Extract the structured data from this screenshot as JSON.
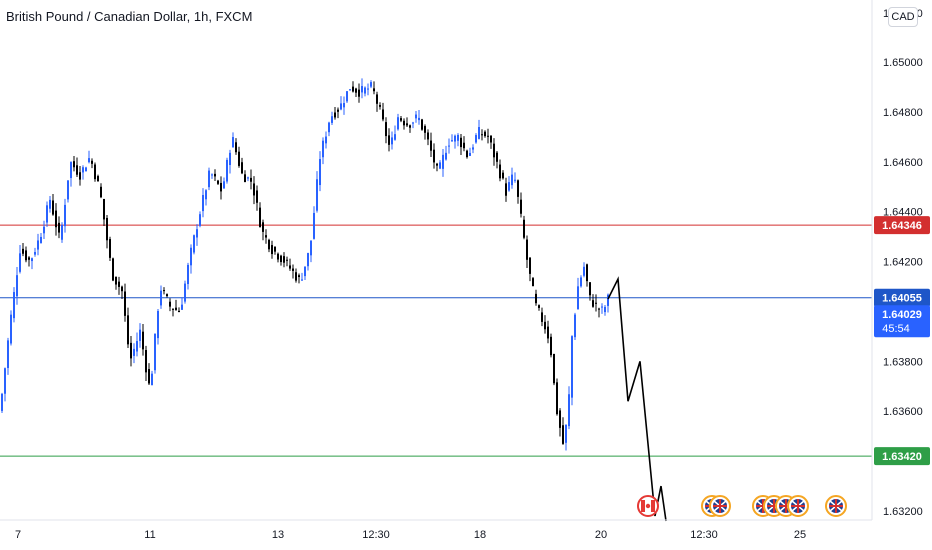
{
  "header": {
    "title": "British Pound / Canadian Dollar, 1h, FXCM",
    "currency_button": "CAD"
  },
  "colors": {
    "up": "#2962ff",
    "down": "#000000",
    "resistance": "#d32f2f",
    "pivot": "#1e56c8",
    "support": "#2e9e47",
    "price_tag": "#2962ff",
    "projection": "#000000"
  },
  "chart_data": {
    "type": "line",
    "instrument": "British Pound / Canadian Dollar",
    "timeframe": "1h",
    "source": "FXCM",
    "y_axis": {
      "ticks": [
        1.65,
        1.648,
        1.646,
        1.644,
        1.642,
        1.638,
        1.636,
        1.632
      ],
      "tick_labels": [
        "1.65000",
        "1.64800",
        "1.64600",
        "1.64400",
        "1.64200",
        "1.63800",
        "1.63600",
        "1.63200"
      ],
      "partial_top_label": "1.65200",
      "range": [
        1.6316,
        1.6525
      ]
    },
    "x_axis": {
      "tick_labels": [
        "7",
        "11",
        "13",
        "12:30",
        "18",
        "20",
        "12:30",
        "25"
      ]
    },
    "series": [
      {
        "points": [
          [
            0,
            1.636
          ],
          [
            10,
            1.6395
          ],
          [
            20,
            1.6425
          ],
          [
            30,
            1.642
          ],
          [
            40,
            1.643
          ],
          [
            50,
            1.6445
          ],
          [
            60,
            1.6428
          ],
          [
            70,
            1.646
          ],
          [
            80,
            1.6455
          ],
          [
            90,
            1.6462
          ],
          [
            100,
            1.6448
          ],
          [
            112,
            1.6415
          ],
          [
            122,
            1.6408
          ],
          [
            130,
            1.638
          ],
          [
            140,
            1.6392
          ],
          [
            150,
            1.6368
          ],
          [
            160,
            1.641
          ],
          [
            170,
            1.6402
          ],
          [
            180,
            1.64
          ],
          [
            190,
            1.6422
          ],
          [
            200,
            1.644
          ],
          [
            210,
            1.6456
          ],
          [
            222,
            1.6448
          ],
          [
            232,
            1.647
          ],
          [
            242,
            1.6455
          ],
          [
            252,
            1.6452
          ],
          [
            262,
            1.6432
          ],
          [
            272,
            1.6425
          ],
          [
            285,
            1.642
          ],
          [
            300,
            1.6412
          ],
          [
            310,
            1.6425
          ],
          [
            320,
            1.6462
          ],
          [
            330,
            1.6478
          ],
          [
            340,
            1.6482
          ],
          [
            350,
            1.649
          ],
          [
            360,
            1.6488
          ],
          [
            372,
            1.649
          ],
          [
            380,
            1.648
          ],
          [
            390,
            1.6465
          ],
          [
            398,
            1.6478
          ],
          [
            408,
            1.6475
          ],
          [
            418,
            1.6478
          ],
          [
            428,
            1.6468
          ],
          [
            438,
            1.6455
          ],
          [
            448,
            1.6468
          ],
          [
            458,
            1.647
          ],
          [
            468,
            1.6462
          ],
          [
            478,
            1.6472
          ],
          [
            488,
            1.647
          ],
          [
            498,
            1.6458
          ],
          [
            506,
            1.6448
          ],
          [
            514,
            1.6455
          ],
          [
            520,
            1.644
          ],
          [
            528,
            1.6418
          ],
          [
            536,
            1.6402
          ],
          [
            544,
            1.6395
          ],
          [
            550,
            1.6388
          ],
          [
            556,
            1.6362
          ],
          [
            563,
            1.6347
          ],
          [
            568,
            1.6358
          ],
          [
            572,
            1.639
          ],
          [
            578,
            1.641
          ],
          [
            584,
            1.6418
          ],
          [
            590,
            1.6405
          ],
          [
            596,
            1.6402
          ],
          [
            603,
            1.64
          ],
          [
            608,
            1.6405
          ]
        ]
      },
      {
        "name": "",
        "points": [
          [
            608,
            1.6405
          ],
          [
            618,
            1.6413
          ],
          [
            628,
            1.6364
          ],
          [
            640,
            1.638
          ],
          [
            655,
            1.6318
          ],
          [
            661,
            1.633
          ],
          [
            666,
            1.6316
          ]
        ]
      }
    ],
    "horizontal_levels": [
      {
        "value": 1.64346,
        "label": "1.64346",
        "role": "resistance"
      },
      {
        "value": 1.64055,
        "label": "1.64055",
        "role": "pivot"
      },
      {
        "value": 1.6342,
        "label": "1.63420",
        "role": "support"
      }
    ],
    "current_price": {
      "value": 1.64029,
      "label": "1.64029",
      "countdown": "45:54"
    },
    "grid": false,
    "legend": "none",
    "event_markers": [
      {
        "icon": "canada-flag-icon",
        "x": 648
      },
      {
        "icon": "uk-flag-icon",
        "x": 712
      },
      {
        "icon": "uk-flag-icon",
        "x": 720
      },
      {
        "icon": "uk-flag-icon",
        "x": 763
      },
      {
        "icon": "uk-flag-icon",
        "x": 774
      },
      {
        "icon": "uk-flag-icon",
        "x": 786
      },
      {
        "icon": "uk-flag-icon",
        "x": 798
      },
      {
        "icon": "uk-flag-icon",
        "x": 836
      }
    ]
  }
}
